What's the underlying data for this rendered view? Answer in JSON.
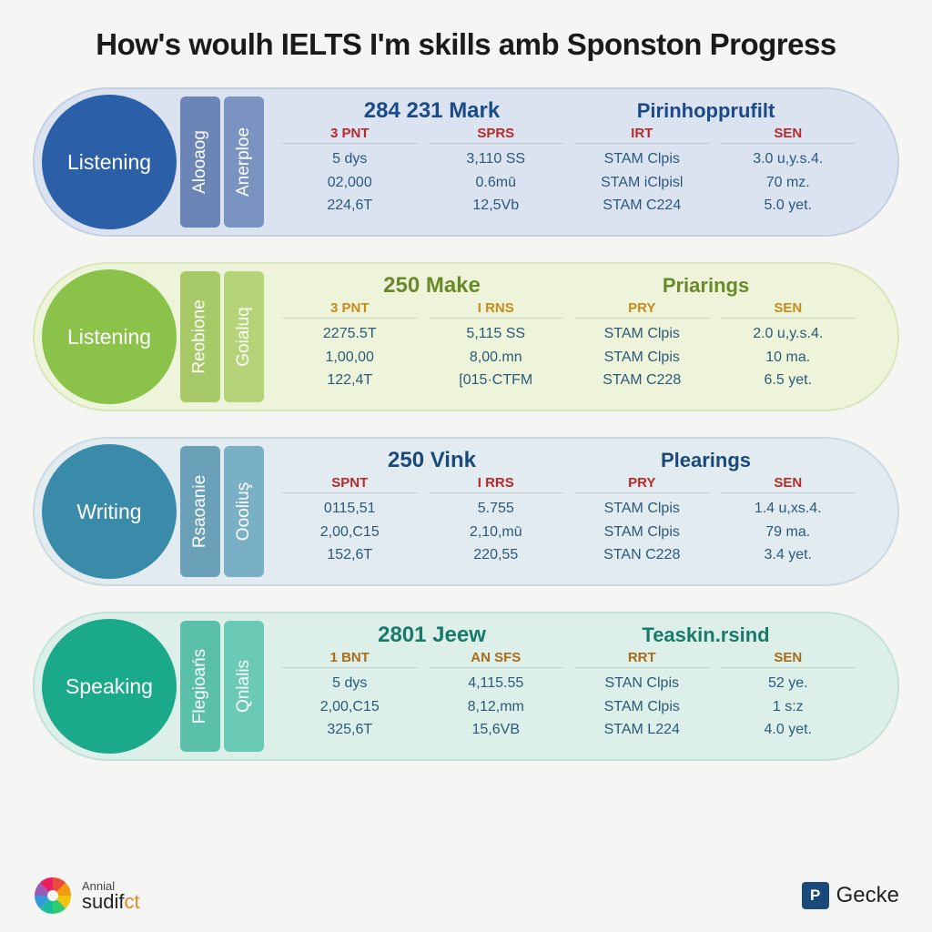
{
  "title": "How's woulh IELTS I'm skills amb Sponston Progress",
  "footer": {
    "left_line1": "Annial",
    "left_line2a": "sudif",
    "left_line2b": "ct",
    "right_badge": "P",
    "right_text": "Gecke"
  },
  "wheel_colors": [
    "#e84c3d",
    "#f39c12",
    "#f1c40f",
    "#2ecc71",
    "#1abc9c",
    "#3498db",
    "#9b59b6",
    "#e91e63"
  ],
  "rows": [
    {
      "skill": "Listening",
      "circle_color": "#2b5fa8",
      "bg_color": "#dbe3f0",
      "border_color": "#c3cfe3",
      "tab_a": {
        "label": "Alooaog",
        "color": "#6a85b6"
      },
      "tab_b": {
        "label": "Anerploe",
        "color": "#7a93c0"
      },
      "header_left": "284 231  Mark",
      "header_right": "Pirinhopprufilt",
      "header_color": "#1a4a8a",
      "cols": [
        {
          "h": "3 PNT",
          "h_color": "#b82a2a",
          "v": [
            "5 dys",
            "02,000",
            "224,6T"
          ]
        },
        {
          "h": "SPRS",
          "h_color": "#b82a2a",
          "v": [
            "3,110 SS",
            "0.6mū",
            "12,5Vb"
          ]
        },
        {
          "h": "IRT",
          "h_color": "#b82a2a",
          "v": [
            "STAM Clpis",
            "STAM iClpisl",
            "STAM C224"
          ]
        },
        {
          "h": "SEN",
          "h_color": "#b82a2a",
          "v": [
            "3.0 u,y.s.4.",
            "70 mz.",
            "5.0 yet."
          ]
        }
      ]
    },
    {
      "skill": "Listening",
      "circle_color": "#8bc34a",
      "bg_color": "#eef4da",
      "border_color": "#d8e6b8",
      "tab_a": {
        "label": "Reobione",
        "color": "#a8c968"
      },
      "tab_b": {
        "label": "Goialuq",
        "color": "#b5d47a"
      },
      "header_left": "250 Make",
      "header_right": "Priarings",
      "header_color": "#6a8a2a",
      "cols": [
        {
          "h": "3 PNT",
          "h_color": "#c98a1a",
          "v": [
            "2275.5T",
            "1,00,00",
            "122,4T"
          ]
        },
        {
          "h": "I RNS",
          "h_color": "#c98a1a",
          "v": [
            "5,115 SS",
            "8,00.mn",
            "[015·CTFM"
          ]
        },
        {
          "h": "PRY",
          "h_color": "#c98a1a",
          "v": [
            "STAM Clpis",
            "STAM Clpis",
            "STAM C228"
          ]
        },
        {
          "h": "SEN",
          "h_color": "#c98a1a",
          "v": [
            "2.0 u,y.s.4.",
            "10 ma.",
            "6.5 yet."
          ]
        }
      ]
    },
    {
      "skill": "Writing",
      "circle_color": "#3a8aaa",
      "bg_color": "#e2ebef",
      "border_color": "#cad9e0",
      "tab_a": {
        "label": "Rsaoanie",
        "color": "#6aa0b8"
      },
      "tab_b": {
        "label": "Oooliuş",
        "color": "#7ab0c5"
      },
      "header_left": "250 Vink",
      "header_right": "Plearings",
      "header_color": "#1a4a7a",
      "cols": [
        {
          "h": "SPNT",
          "h_color": "#b82a2a",
          "v": [
            "0115,51",
            "2,00,C15",
            "152,6T"
          ]
        },
        {
          "h": "I RRS",
          "h_color": "#b82a2a",
          "v": [
            "5.755",
            "2,10,mū",
            "220,55"
          ]
        },
        {
          "h": "PRY",
          "h_color": "#b82a2a",
          "v": [
            "STAM Clpis",
            "STAM Clpis",
            "STAN C228"
          ]
        },
        {
          "h": "SEN",
          "h_color": "#b82a2a",
          "v": [
            "1.4 u,xs.4.",
            "79 ma.",
            "3.4 yet."
          ]
        }
      ]
    },
    {
      "skill": "Speaking",
      "circle_color": "#1aaa8a",
      "bg_color": "#dcefe9",
      "border_color": "#c0e2d8",
      "tab_a": {
        "label": "Flegioańs",
        "color": "#5ac0aa"
      },
      "tab_b": {
        "label": "Qnlalis",
        "color": "#6acab5"
      },
      "header_left": "2801   Jeew",
      "header_right": "Teaskin.rsind",
      "header_color": "#1a7a6a",
      "cols": [
        {
          "h": "1 BNT",
          "h_color": "#aa6a1a",
          "v": [
            "5 dys",
            "2,00,C15",
            "325,6T"
          ]
        },
        {
          "h": "AN SFS",
          "h_color": "#aa6a1a",
          "v": [
            "4,115.55",
            "8,12,mm",
            "15,6VB"
          ]
        },
        {
          "h": "RRT",
          "h_color": "#aa6a1a",
          "v": [
            "STAN Clpis",
            "STAM Clpis",
            "STAM L224"
          ]
        },
        {
          "h": "SEN",
          "h_color": "#aa6a1a",
          "v": [
            "52 ye.",
            "1 s:z",
            "4.0 yet."
          ]
        }
      ]
    }
  ]
}
